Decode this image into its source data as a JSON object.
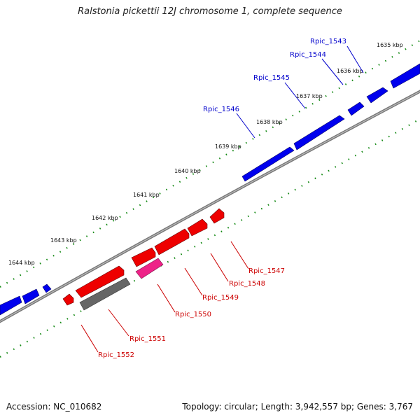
{
  "title": "Ralstonia pickettii 12J chromosome 1, complete sequence",
  "footer": {
    "accession": "Accession: NC_010682",
    "topology": "Topology: circular; Length: 3,942,557 bp; Genes: 3,767"
  },
  "colors": {
    "forward_gene": "#0000ee",
    "reverse_gene": "#ee0000",
    "reverse_rrna": "#ee2288",
    "pseudo_gene": "#666666",
    "backbone": "#888888",
    "tick": "#118811"
  },
  "scale_labels": [
    "1635 kbp",
    "1636 kbp",
    "1637 kbp",
    "1638 kbp",
    "1639 kbp",
    "1640 kbp",
    "1641 kbp",
    "1642 kbp",
    "1643 kbp",
    "1644 kbp"
  ],
  "gene_labels": {
    "forward": [
      "Rpic_1543",
      "Rpic_1544",
      "Rpic_1545",
      "Rpic_1546"
    ],
    "reverse": [
      "Rpic_1547",
      "Rpic_1548",
      "Rpic_1549",
      "Rpic_1550",
      "Rpic_1551",
      "Rpic_1552"
    ]
  }
}
